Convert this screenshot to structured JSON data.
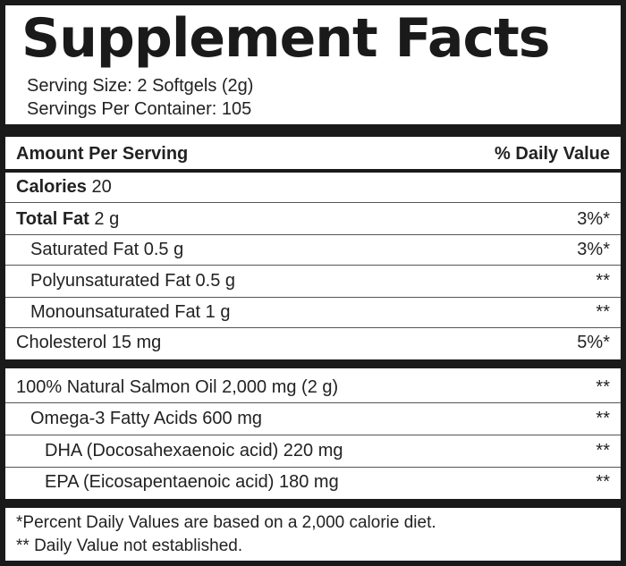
{
  "title": "Supplement Facts",
  "serving_size": "Serving Size: 2 Softgels (2g)",
  "servings_per_container": "Servings Per Container: 105",
  "header": {
    "amount": "Amount Per Serving",
    "dv": "% Daily Value"
  },
  "rows": [
    {
      "name": "Calories",
      "amount": "20",
      "dv": ""
    },
    {
      "name": "Total Fat",
      "amount": "2 g",
      "dv": "3%*"
    },
    {
      "name": "Saturated Fat 0.5 g",
      "amount": "",
      "dv": "3%*"
    },
    {
      "name": "Polyunsaturated Fat 0.5 g",
      "amount": "",
      "dv": "**"
    },
    {
      "name": "Monounsaturated Fat 1 g",
      "amount": "",
      "dv": "**"
    },
    {
      "name": "Cholesterol 15 mg",
      "amount": "",
      "dv": "5%*"
    }
  ],
  "oil_rows": [
    {
      "name": "100% Natural Salmon Oil 2,000 mg (2 g)",
      "dv": "**"
    },
    {
      "name": "Omega-3 Fatty Acids 600 mg",
      "dv": "**"
    },
    {
      "name": "DHA (Docosahexaenoic acid) 220 mg",
      "dv": "**"
    },
    {
      "name": "EPA (Eicosapentaenoic acid) 180 mg",
      "dv": "**"
    }
  ],
  "footnotes": [
    "*Percent Daily Values are based on a 2,000 calorie diet.",
    "** Daily Value not established."
  ]
}
